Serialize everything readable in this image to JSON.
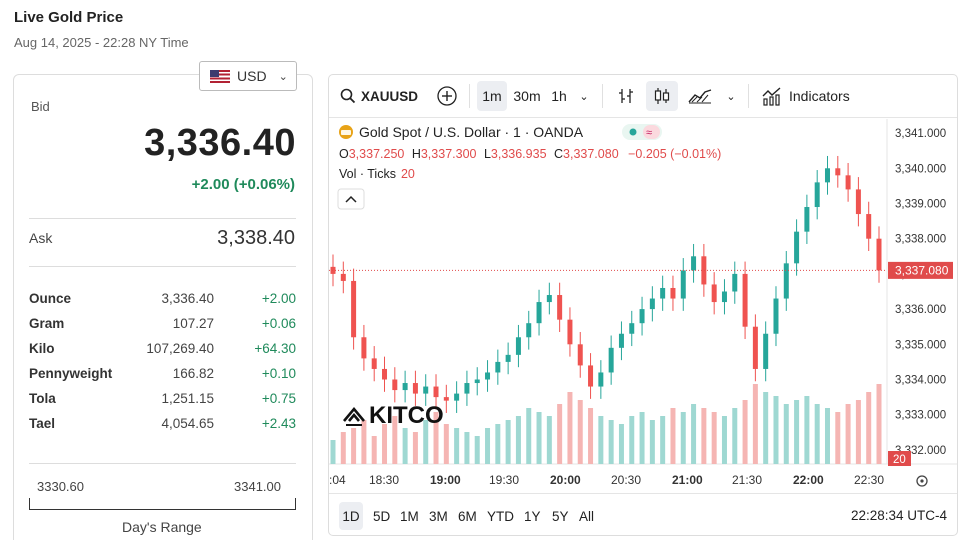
{
  "header": {
    "title": "Live Gold Price",
    "date": "Aug 14, 2025 - 22:28 NY Time"
  },
  "currency": {
    "selected": "USD",
    "icon": "us-flag-icon"
  },
  "bid": {
    "label": "Bid",
    "value": "3,336.40",
    "change": "+2.00 (+0.06%)"
  },
  "ask": {
    "label": "Ask",
    "value": "3,338.40"
  },
  "units": [
    {
      "name": "Ounce",
      "price": "3,336.40",
      "change": "+2.00"
    },
    {
      "name": "Gram",
      "price": "107.27",
      "change": "+0.06"
    },
    {
      "name": "Kilo",
      "price": "107,269.40",
      "change": "+64.30"
    },
    {
      "name": "Pennyweight",
      "price": "166.82",
      "change": "+0.10"
    },
    {
      "name": "Tola",
      "price": "1,251.15",
      "change": "+0.75"
    },
    {
      "name": "Tael",
      "price": "4,054.65",
      "change": "+2.43"
    }
  ],
  "days_range": {
    "low": "3330.60",
    "high": "3341.00",
    "label": "Day's Range"
  },
  "toolbar": {
    "symbol": "XAUUSD",
    "intervals": [
      "1m",
      "30m",
      "1h"
    ],
    "selected_interval": "1m",
    "indicators_label": "Indicators"
  },
  "legend": {
    "title": "Gold Spot / U.S. Dollar · 1 · OANDA",
    "o_label": "O",
    "o_value": "3,337.250",
    "h_label": "H",
    "h_value": "3,337.300",
    "l_label": "L",
    "l_value": "3,336.935",
    "c_label": "C",
    "c_value": "3,337.080",
    "change": "−0.205 (−0.01%)",
    "vol_label": "Vol · Ticks",
    "vol_value": "20"
  },
  "watermark": "KITCO",
  "price_axis": [
    "3,341.000",
    "3,340.000",
    "3,339.000",
    "3,338.000",
    "3,337.000",
    "3,336.000",
    "3,335.000",
    "3,334.000",
    "3,333.000",
    "3,332.000"
  ],
  "last_price_tag": "3,337.080",
  "volume_tag": "20",
  "time_axis": [
    ":04",
    "18:30",
    "19:00",
    "19:30",
    "20:00",
    "20:30",
    "21:00",
    "21:30",
    "22:00",
    "22:30"
  ],
  "ranges": [
    "1D",
    "5D",
    "1M",
    "3M",
    "6M",
    "YTD",
    "1Y",
    "5Y",
    "All"
  ],
  "selected_range": "1D",
  "clock": "22:28:34 UTC-4",
  "colors": {
    "up": "#26a69a",
    "down": "#ef5350",
    "accent_green": "#1f8a5b",
    "price_tag": "#e04b4b"
  },
  "chart_data": {
    "type": "line",
    "title": "Gold Spot / U.S. Dollar · 1 · OANDA",
    "xlabel": "",
    "ylabel": "",
    "ylim": [
      3331.6,
      3341.4
    ],
    "x": [
      "18:04",
      "18:10",
      "18:15",
      "18:20",
      "18:25",
      "18:30",
      "18:35",
      "18:40",
      "18:45",
      "18:50",
      "18:55",
      "19:00",
      "19:05",
      "19:10",
      "19:15",
      "19:20",
      "19:25",
      "19:30",
      "19:35",
      "19:40",
      "19:45",
      "19:50",
      "19:55",
      "20:00",
      "20:05",
      "20:10",
      "20:15",
      "20:20",
      "20:25",
      "20:30",
      "20:35",
      "20:40",
      "20:45",
      "20:50",
      "20:55",
      "21:00",
      "21:05",
      "21:10",
      "21:15",
      "21:20",
      "21:25",
      "21:30",
      "21:35",
      "21:40",
      "21:45",
      "21:50",
      "21:55",
      "22:00",
      "22:05",
      "22:10",
      "22:15",
      "22:20",
      "22:25",
      "22:28"
    ],
    "series": [
      {
        "values": [
          3337.0,
          3336.8,
          3335.2,
          3334.6,
          3334.3,
          3334.0,
          3333.7,
          3333.9,
          3333.6,
          3333.8,
          3333.5,
          3333.4,
          3333.6,
          3333.9,
          3334.0,
          3334.2,
          3334.5,
          3334.7,
          3335.2,
          3335.6,
          3336.2,
          3336.4,
          3335.7,
          3335.0,
          3334.4,
          3333.8,
          3334.2,
          3334.9,
          3335.3,
          3335.6,
          3336.0,
          3336.3,
          3336.6,
          3336.3,
          3337.1,
          3337.5,
          3336.7,
          3336.2,
          3336.5,
          3337.0,
          3335.5,
          3334.3,
          3335.3,
          3336.3,
          3337.3,
          3338.2,
          3338.9,
          3339.6,
          3340.0,
          3339.8,
          3339.4,
          3338.7,
          3338.0,
          3337.1
        ]
      }
    ],
    "volume": [
      6,
      8,
      9,
      11,
      7,
      10,
      12,
      9,
      8,
      11,
      13,
      10,
      9,
      8,
      7,
      9,
      10,
      11,
      12,
      14,
      13,
      12,
      15,
      18,
      16,
      14,
      12,
      11,
      10,
      12,
      13,
      11,
      12,
      14,
      13,
      15,
      14,
      13,
      12,
      14,
      16,
      20,
      18,
      17,
      15,
      16,
      17,
      15,
      14,
      13,
      15,
      16,
      18,
      20
    ]
  }
}
